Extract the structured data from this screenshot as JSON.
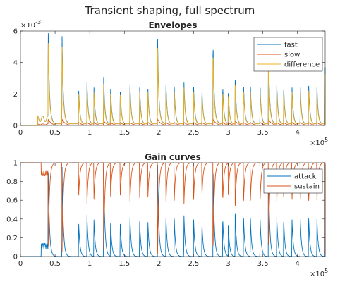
{
  "figure": {
    "title": "Transient shaping, full spectrum"
  },
  "chart_data": [
    {
      "type": "line",
      "title": "Envelopes",
      "xlim": [
        0,
        440000
      ],
      "ylim": [
        0,
        0.006
      ],
      "x_tick_labels": [
        "0",
        "0.5",
        "1",
        "1.5",
        "2",
        "2.5",
        "3",
        "3.5",
        "4"
      ],
      "x_tick_values": [
        0,
        50000,
        100000,
        150000,
        200000,
        250000,
        300000,
        350000,
        400000
      ],
      "x_exponent_label": "×10^5",
      "y_tick_labels": [
        "0",
        "2",
        "4",
        "6"
      ],
      "y_tick_values": [
        0,
        0.002,
        0.004,
        0.006
      ],
      "y_exponent_label": "×10^-3",
      "grid": false,
      "legend_position": "top-right",
      "transient_positions_x": [
        40000,
        60000,
        84000,
        96000,
        106000,
        120000,
        130000,
        144000,
        158000,
        172000,
        184000,
        198000,
        210000,
        222000,
        236000,
        250000,
        262000,
        278000,
        292000,
        300000,
        310000,
        322000,
        332000,
        346000,
        358000,
        370000,
        380000,
        392000,
        404000,
        416000,
        428000,
        440000
      ],
      "series": [
        {
          "name": "fast",
          "color": "#0072BD",
          "peak_values": [
            0.0056,
            0.0052,
            0.0021,
            0.0025,
            0.0023,
            0.0029,
            0.0023,
            0.0021,
            0.0025,
            0.0023,
            0.0021,
            0.0049,
            0.0025,
            0.0023,
            0.0025,
            0.0022,
            0.0021,
            0.0049,
            0.0023,
            0.0021,
            0.0027,
            0.0025,
            0.0023,
            0.0022,
            0.0044,
            0.0025,
            0.0023,
            0.0023,
            0.0022,
            0.0025,
            0.0023,
            0.0033
          ]
        },
        {
          "name": "slow",
          "color": "#D95319",
          "peak_values": [
            0.0004,
            0.0004,
            0.0002,
            0.0002,
            0.0002,
            0.0003,
            0.0002,
            0.0002,
            0.0002,
            0.0002,
            0.0002,
            0.0004,
            0.0002,
            0.0002,
            0.0002,
            0.0002,
            0.0002,
            0.0004,
            0.0002,
            0.0002,
            0.0003,
            0.0002,
            0.0002,
            0.0002,
            0.0004,
            0.0002,
            0.0002,
            0.0002,
            0.0002,
            0.0002,
            0.0002,
            0.0003
          ]
        },
        {
          "name": "difference",
          "color": "#EDB120",
          "peak_values": [
            0.005,
            0.0046,
            0.0019,
            0.0022,
            0.002,
            0.0025,
            0.002,
            0.0019,
            0.0022,
            0.002,
            0.0019,
            0.0044,
            0.0022,
            0.002,
            0.0022,
            0.0019,
            0.0019,
            0.0044,
            0.002,
            0.0019,
            0.0024,
            0.0022,
            0.002,
            0.0019,
            0.0039,
            0.0022,
            0.002,
            0.002,
            0.0019,
            0.0022,
            0.002,
            0.0029
          ]
        }
      ]
    },
    {
      "type": "line",
      "title": "Gain curves",
      "xlim": [
        0,
        440000
      ],
      "ylim": [
        0,
        1
      ],
      "x_tick_labels": [
        "0",
        "0.5",
        "1",
        "1.5",
        "2",
        "2.5",
        "3",
        "3.5",
        "4"
      ],
      "x_tick_values": [
        0,
        50000,
        100000,
        150000,
        200000,
        250000,
        300000,
        350000,
        400000
      ],
      "x_exponent_label": "×10^5",
      "y_tick_labels": [
        "0",
        "0.2",
        "0.4",
        "0.6",
        "0.8",
        "1"
      ],
      "y_tick_values": [
        0,
        0.2,
        0.4,
        0.6,
        0.8,
        1
      ],
      "grid": false,
      "legend_position": "top-right",
      "transient_positions_x": [
        40000,
        60000,
        84000,
        96000,
        106000,
        120000,
        130000,
        144000,
        158000,
        172000,
        184000,
        198000,
        210000,
        222000,
        236000,
        250000,
        262000,
        278000,
        292000,
        300000,
        310000,
        322000,
        332000,
        346000,
        358000,
        370000,
        380000,
        392000,
        404000,
        416000,
        428000,
        440000
      ],
      "series": [
        {
          "name": "attack",
          "color": "#0072BD",
          "peak_values": [
            0.95,
            0.98,
            0.37,
            0.45,
            0.42,
            0.98,
            0.4,
            0.38,
            0.45,
            0.4,
            0.37,
            0.98,
            0.45,
            0.42,
            0.45,
            0.4,
            0.37,
            0.98,
            0.42,
            0.37,
            0.48,
            0.45,
            0.42,
            0.4,
            0.98,
            0.45,
            0.42,
            0.42,
            0.4,
            0.45,
            0.42,
            0.98
          ]
        },
        {
          "name": "sustain",
          "color": "#D95319",
          "dip_values": [
            0.05,
            0.02,
            0.63,
            0.55,
            0.58,
            0.02,
            0.6,
            0.62,
            0.55,
            0.6,
            0.63,
            0.02,
            0.55,
            0.58,
            0.55,
            0.6,
            0.63,
            0.02,
            0.58,
            0.63,
            0.52,
            0.55,
            0.58,
            0.6,
            0.02,
            0.55,
            0.58,
            0.58,
            0.6,
            0.55,
            0.58,
            0.02
          ]
        }
      ]
    }
  ]
}
